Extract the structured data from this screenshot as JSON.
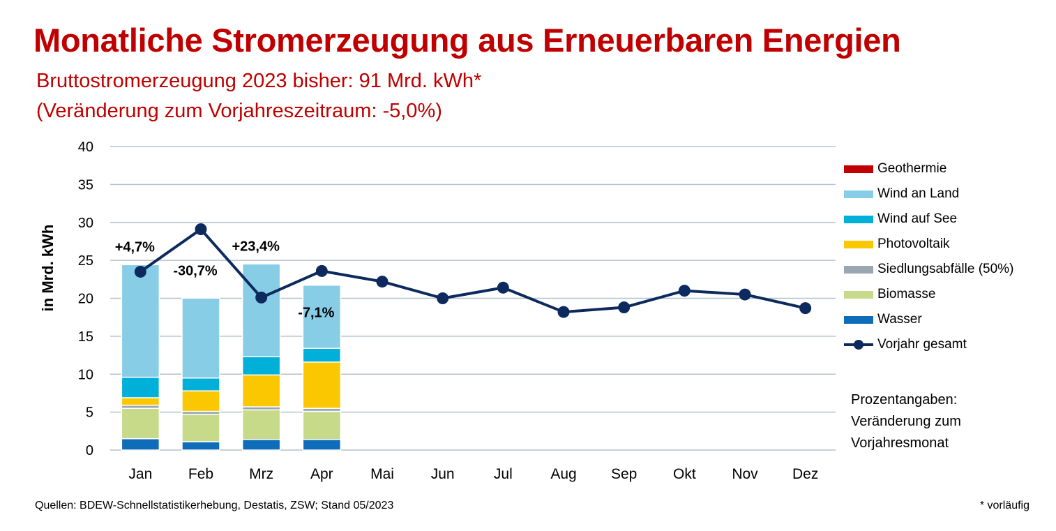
{
  "header": {
    "title": "Monatliche Stromerzeugung aus Erneuerbaren Energien",
    "subtitle_line1": "Bruttostromerzeugung 2023 bisher: 91 Mrd. kWh*",
    "subtitle_line2": "(Veränderung zum Vorjahreszeitraum: -5,0%)"
  },
  "legend": {
    "geothermie": "Geothermie",
    "wind_land": "Wind an Land",
    "wind_see": "Wind auf See",
    "pv": "Photovoltaik",
    "siedlung": "Siedlungsabfälle (50%)",
    "biomasse": "Biomasse",
    "wasser": "Wasser",
    "vorjahr": "Vorjahr gesamt"
  },
  "note": {
    "line1": "Prozentangaben:",
    "line2": "Veränderung zum",
    "line3": "Vorjahresmonat"
  },
  "footer": {
    "source": "Quellen: BDEW-Schnellstatistikerhebung, Destatis, ZSW; Stand 05/2023",
    "footnote": "* vorläufig"
  },
  "colors": {
    "geothermie": "#c00000",
    "wind_land": "#87cde6",
    "wind_see": "#00b0d8",
    "pv": "#fac700",
    "siedlung": "#9aa6b2",
    "biomasse": "#c6da8a",
    "wasser": "#0f6cb8",
    "vorjahr": "#0d2a5e",
    "grid": "#b4c2cc"
  },
  "chart_data": {
    "type": "bar",
    "stacked": true,
    "ylabel": "in Mrd. kWh",
    "ylim": [
      0,
      40
    ],
    "yticks": [
      0,
      5,
      10,
      15,
      20,
      25,
      30,
      35,
      40
    ],
    "grid": true,
    "legend_position": "right",
    "categories": [
      "Jan",
      "Feb",
      "Mrz",
      "Apr",
      "Mai",
      "Jun",
      "Jul",
      "Aug",
      "Sep",
      "Okt",
      "Nov",
      "Dez"
    ],
    "series": [
      {
        "name": "Wasser",
        "key": "wasser",
        "values": [
          1.5,
          1.1,
          1.4,
          1.4,
          null,
          null,
          null,
          null,
          null,
          null,
          null,
          null
        ]
      },
      {
        "name": "Biomasse",
        "key": "biomasse",
        "values": [
          4.0,
          3.6,
          3.9,
          3.7,
          null,
          null,
          null,
          null,
          null,
          null,
          null,
          null
        ]
      },
      {
        "name": "Siedlungsabfälle (50%)",
        "key": "siedlung",
        "values": [
          0.4,
          0.4,
          0.4,
          0.4,
          null,
          null,
          null,
          null,
          null,
          null,
          null,
          null
        ]
      },
      {
        "name": "Photovoltaik",
        "key": "pv",
        "values": [
          1.0,
          2.7,
          4.2,
          6.1,
          null,
          null,
          null,
          null,
          null,
          null,
          null,
          null
        ]
      },
      {
        "name": "Wind auf See",
        "key": "wind_see",
        "values": [
          2.7,
          1.7,
          2.4,
          1.8,
          null,
          null,
          null,
          null,
          null,
          null,
          null,
          null
        ]
      },
      {
        "name": "Wind an Land",
        "key": "wind_land",
        "values": [
          14.9,
          10.6,
          12.3,
          8.4,
          null,
          null,
          null,
          null,
          null,
          null,
          null,
          null
        ]
      },
      {
        "name": "Geothermie",
        "key": "geothermie",
        "values": [
          0.02,
          0.02,
          0.02,
          0.02,
          null,
          null,
          null,
          null,
          null,
          null,
          null,
          null
        ]
      }
    ],
    "line_series": {
      "name": "Vorjahr gesamt",
      "values": [
        23.5,
        29.1,
        20.1,
        23.6,
        22.2,
        20.0,
        21.4,
        18.2,
        18.8,
        21.0,
        20.5,
        18.7
      ]
    },
    "annotations": [
      {
        "category": "Jan",
        "text": "+4,7%"
      },
      {
        "category": "Feb",
        "text": "-30,7%"
      },
      {
        "category": "Mrz",
        "text": "+23,4%"
      },
      {
        "category": "Apr",
        "text": "-7,1%"
      }
    ]
  }
}
